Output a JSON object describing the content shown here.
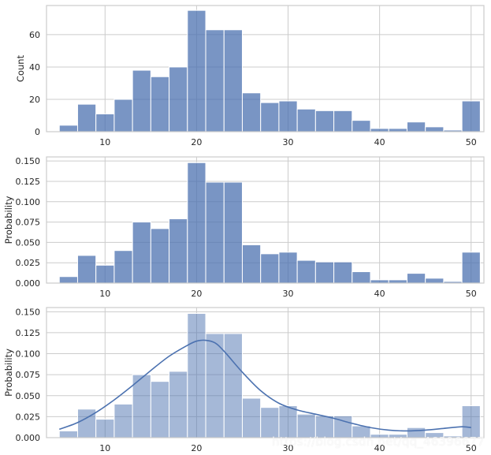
{
  "colors": {
    "bar": "#4c72b0",
    "grid": "#cccccc",
    "spine": "#cccccc",
    "kde": "#4c72b0"
  },
  "watermark": "https://blog.csdn.net/qq_46396677",
  "chart_data": [
    {
      "type": "bar",
      "subtype": "histogram",
      "ylabel": "Count",
      "xlabel": "",
      "xlim": [
        3.6,
        51.4
      ],
      "ylim": [
        0,
        78
      ],
      "xticks": [
        10,
        20,
        30,
        40,
        50
      ],
      "yticks": [
        0,
        20,
        40,
        60
      ],
      "grid": true,
      "bar_alpha": 0.75,
      "bin_edges": [
        5,
        7,
        9,
        11,
        13,
        15,
        17,
        19,
        21,
        23,
        25,
        27,
        29,
        31,
        33,
        35,
        37,
        39,
        41,
        43,
        45,
        47,
        49,
        51
      ],
      "values": [
        4,
        17,
        11,
        20,
        38,
        34,
        40,
        75,
        63,
        63,
        24,
        18,
        19,
        14,
        13,
        13,
        7,
        2,
        2,
        6,
        3,
        1,
        19
      ]
    },
    {
      "type": "bar",
      "subtype": "histogram",
      "ylabel": "Probability",
      "xlabel": "",
      "xlim": [
        3.6,
        51.4
      ],
      "ylim": [
        0,
        0.155
      ],
      "xticks": [
        10,
        20,
        30,
        40,
        50
      ],
      "yticks": [
        0.0,
        0.025,
        0.05,
        0.075,
        0.1,
        0.125,
        0.15
      ],
      "ytick_labels": [
        "0.000",
        "0.025",
        "0.050",
        "0.075",
        "0.100",
        "0.125",
        "0.150"
      ],
      "grid": true,
      "bar_alpha": 0.75,
      "bin_edges": [
        5,
        7,
        9,
        11,
        13,
        15,
        17,
        19,
        21,
        23,
        25,
        27,
        29,
        31,
        33,
        35,
        37,
        39,
        41,
        43,
        45,
        47,
        49,
        51
      ],
      "values": [
        0.008,
        0.034,
        0.022,
        0.04,
        0.075,
        0.067,
        0.079,
        0.148,
        0.124,
        0.124,
        0.047,
        0.036,
        0.038,
        0.028,
        0.026,
        0.026,
        0.014,
        0.004,
        0.004,
        0.012,
        0.006,
        0.002,
        0.038
      ]
    },
    {
      "type": "bar",
      "subtype": "histogram+kde",
      "ylabel": "Probability",
      "xlabel": "",
      "xlim": [
        3.6,
        51.4
      ],
      "ylim": [
        0,
        0.155
      ],
      "xticks": [
        10,
        20,
        30,
        40,
        50
      ],
      "yticks": [
        0.0,
        0.025,
        0.05,
        0.075,
        0.1,
        0.125,
        0.15
      ],
      "ytick_labels": [
        "0.000",
        "0.025",
        "0.050",
        "0.075",
        "0.100",
        "0.125",
        "0.150"
      ],
      "grid": true,
      "bar_alpha": 0.5,
      "bin_edges": [
        5,
        7,
        9,
        11,
        13,
        15,
        17,
        19,
        21,
        23,
        25,
        27,
        29,
        31,
        33,
        35,
        37,
        39,
        41,
        43,
        45,
        47,
        49,
        51
      ],
      "values": [
        0.008,
        0.034,
        0.022,
        0.04,
        0.075,
        0.067,
        0.079,
        0.148,
        0.124,
        0.124,
        0.047,
        0.036,
        0.038,
        0.028,
        0.026,
        0.026,
        0.014,
        0.004,
        0.004,
        0.012,
        0.006,
        0.002,
        0.038
      ],
      "kde": {
        "x": [
          5,
          7,
          9,
          11,
          13,
          15,
          17,
          19,
          20,
          21,
          22,
          23,
          25,
          27,
          29,
          31,
          33,
          35,
          37,
          39,
          41,
          43,
          45,
          47,
          49,
          50
        ],
        "y": [
          0.01,
          0.018,
          0.03,
          0.045,
          0.062,
          0.08,
          0.097,
          0.11,
          0.115,
          0.116,
          0.113,
          0.103,
          0.078,
          0.056,
          0.041,
          0.033,
          0.028,
          0.023,
          0.017,
          0.012,
          0.009,
          0.008,
          0.009,
          0.011,
          0.013,
          0.012
        ]
      }
    }
  ]
}
